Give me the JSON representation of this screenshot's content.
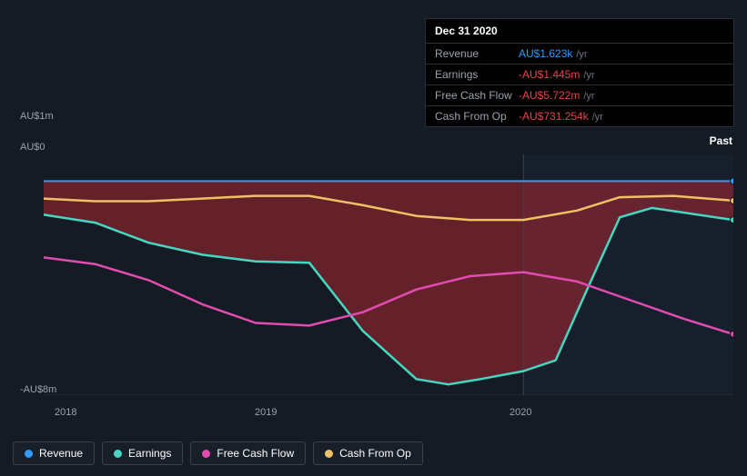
{
  "tooltip": {
    "date": "Dec 31 2020",
    "rows": [
      {
        "label": "Revenue",
        "value": "AU$1.623k",
        "unit": "/yr",
        "color": "#2e9bff"
      },
      {
        "label": "Earnings",
        "value": "-AU$1.445m",
        "unit": "/yr",
        "color": "#e64545"
      },
      {
        "label": "Free Cash Flow",
        "value": "-AU$5.722m",
        "unit": "/yr",
        "color": "#e64545"
      },
      {
        "label": "Cash From Op",
        "value": "-AU$731.254k",
        "unit": "/yr",
        "color": "#e64545"
      }
    ]
  },
  "labels": {
    "past": "Past"
  },
  "chart": {
    "type": "line-area",
    "background": "#151b24",
    "past_shade": "#1a2332",
    "grid_color": "#2a3139",
    "y_ticks": [
      {
        "label": "AU$1m",
        "v": 1
      },
      {
        "label": "AU$0",
        "v": 0
      },
      {
        "label": "-AU$8m",
        "v": -8
      }
    ],
    "y_domain": [
      -8,
      1
    ],
    "x_ticks": [
      "2018",
      "2019",
      "2020"
    ],
    "x_domain": [
      2017.76,
      2020.98
    ],
    "vertical_marker_x": 2020.0,
    "series": [
      {
        "name": "Revenue",
        "color": "#2e9bff",
        "width": 2,
        "fill": null,
        "points": [
          [
            2017.76,
            0.0
          ],
          [
            2018.0,
            0.0
          ],
          [
            2018.5,
            0.0
          ],
          [
            2019.0,
            0.0
          ],
          [
            2019.5,
            0.0
          ],
          [
            2020.0,
            0.002
          ],
          [
            2020.5,
            0.002
          ],
          [
            2020.98,
            0.002
          ]
        ]
      },
      {
        "name": "Earnings",
        "color": "#46d7c2",
        "width": 2.5,
        "fill": "rgba(190,40,50,0.48)",
        "fill_to": 0,
        "points": [
          [
            2017.76,
            -1.25
          ],
          [
            2018.0,
            -1.55
          ],
          [
            2018.25,
            -2.3
          ],
          [
            2018.5,
            -2.75
          ],
          [
            2018.75,
            -3.0
          ],
          [
            2019.0,
            -3.05
          ],
          [
            2019.25,
            -5.6
          ],
          [
            2019.5,
            -7.4
          ],
          [
            2019.65,
            -7.6
          ],
          [
            2019.8,
            -7.4
          ],
          [
            2020.0,
            -7.1
          ],
          [
            2020.15,
            -6.7
          ],
          [
            2020.3,
            -4.0
          ],
          [
            2020.45,
            -1.35
          ],
          [
            2020.6,
            -1.0
          ],
          [
            2020.98,
            -1.45
          ]
        ]
      },
      {
        "name": "Free Cash Flow",
        "color": "#e24cb0",
        "width": 2.5,
        "fill": null,
        "points": [
          [
            2017.76,
            -2.85
          ],
          [
            2018.0,
            -3.1
          ],
          [
            2018.25,
            -3.7
          ],
          [
            2018.5,
            -4.6
          ],
          [
            2018.75,
            -5.3
          ],
          [
            2019.0,
            -5.4
          ],
          [
            2019.25,
            -4.9
          ],
          [
            2019.5,
            -4.05
          ],
          [
            2019.75,
            -3.55
          ],
          [
            2020.0,
            -3.4
          ],
          [
            2020.25,
            -3.75
          ],
          [
            2020.5,
            -4.45
          ],
          [
            2020.75,
            -5.15
          ],
          [
            2020.98,
            -5.72
          ]
        ]
      },
      {
        "name": "Cash From Op",
        "color": "#eec166",
        "width": 2.5,
        "fill": null,
        "points": [
          [
            2017.76,
            -0.65
          ],
          [
            2018.0,
            -0.75
          ],
          [
            2018.25,
            -0.75
          ],
          [
            2018.5,
            -0.65
          ],
          [
            2018.75,
            -0.55
          ],
          [
            2019.0,
            -0.55
          ],
          [
            2019.25,
            -0.9
          ],
          [
            2019.5,
            -1.3
          ],
          [
            2019.75,
            -1.45
          ],
          [
            2020.0,
            -1.45
          ],
          [
            2020.25,
            -1.1
          ],
          [
            2020.45,
            -0.6
          ],
          [
            2020.7,
            -0.55
          ],
          [
            2020.98,
            -0.73
          ]
        ]
      }
    ]
  },
  "legend": [
    {
      "label": "Revenue",
      "color": "#2e9bff"
    },
    {
      "label": "Earnings",
      "color": "#46d7c2"
    },
    {
      "label": "Free Cash Flow",
      "color": "#e24cb0"
    },
    {
      "label": "Cash From Op",
      "color": "#eec166"
    }
  ]
}
